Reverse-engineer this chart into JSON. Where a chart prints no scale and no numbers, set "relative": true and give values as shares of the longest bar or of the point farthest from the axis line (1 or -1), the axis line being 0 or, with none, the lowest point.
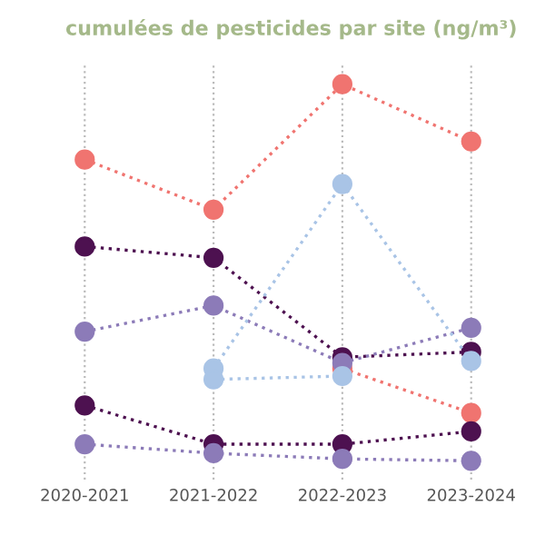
{
  "chart_data": {
    "type": "line",
    "title": "cumulées de pesticides par site (ng/m³)",
    "categories": [
      "2020-2021",
      "2021-2022",
      "2022-2023",
      "2023-2024"
    ],
    "relative": true,
    "grid": "x",
    "marker": "circle",
    "line_style": "dotted",
    "series": [
      {
        "color": "#f07470",
        "values": [
          0.8,
          0.667,
          1,
          0.848
        ]
      },
      {
        "color": "#f07470",
        "values": [
          null,
          null,
          0.245,
          0.127
        ]
      },
      {
        "color": "#4d1150",
        "values": [
          0.569,
          0.539,
          0.275,
          0.289
        ]
      },
      {
        "color": "#4d1150",
        "values": [
          0.147,
          0.044,
          0.044,
          0.078
        ]
      },
      {
        "color": "#8c7bb8",
        "values": [
          0.343,
          0.412,
          0.26,
          0.353
        ]
      },
      {
        "color": "#8c7bb8",
        "values": [
          0.044,
          0.02,
          0.005,
          0
        ]
      },
      {
        "color": "#a9c4e6",
        "values": [
          null,
          0.245,
          0.735,
          0.265
        ]
      },
      {
        "color": "#a9c4e6",
        "values": [
          null,
          0.216,
          0.225,
          null
        ]
      }
    ]
  }
}
